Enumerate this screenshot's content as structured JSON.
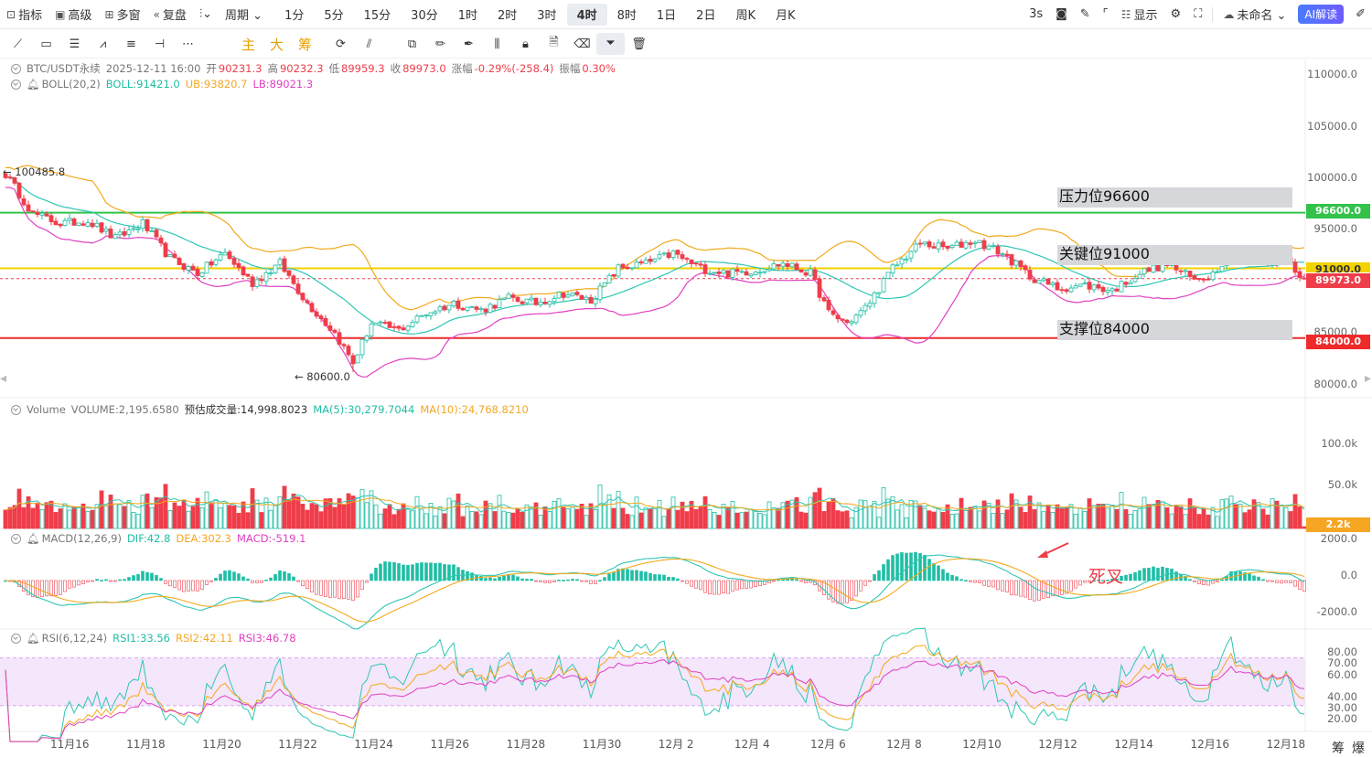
{
  "topbar": {
    "left_items": [
      {
        "icon": "indicator-icon",
        "glyph": "⊡",
        "label": "指标"
      },
      {
        "icon": "advanced-icon",
        "glyph": "▣",
        "label": "高级"
      },
      {
        "icon": "multi-window-icon",
        "glyph": "⊞",
        "label": "多窗"
      },
      {
        "icon": "replay-icon",
        "glyph": "«",
        "label": "复盘"
      }
    ],
    "chart_type_glyph": "⫶⌄",
    "period_label": "周期 ⌄",
    "timeframes": [
      "1分",
      "5分",
      "15分",
      "30分",
      "1时",
      "2时",
      "3时",
      "4时",
      "8时",
      "1日",
      "2日",
      "周K",
      "月K"
    ],
    "active_timeframe": "4时",
    "refresh_label": "3s",
    "display_label": "显示",
    "layout_name": "未命名 ⌄",
    "ai_button": "AI解读"
  },
  "toolbar2": {
    "text_buttons": [
      "主",
      "大",
      "筹"
    ]
  },
  "legend": {
    "symbol": "BTC/USDT永续",
    "datetime": "2025-12-11 16:00",
    "open_label": "开",
    "open": "90231.3",
    "high_label": "高",
    "high": "90232.3",
    "low_label": "低",
    "low": "89959.3",
    "close_label": "收",
    "close": "89973.0",
    "change_label": "涨幅",
    "change": "-0.29%(-258.4)",
    "amp_label": "振幅",
    "amp": "0.30%",
    "boll_name": "BOLL(20,2)",
    "boll_mid": "BOLL:91421.0",
    "boll_ub": "UB:93820.7",
    "boll_lb": "LB:89021.3"
  },
  "volume_legend": {
    "name": "Volume",
    "volume": "VOLUME:2,195.6580",
    "estimate": "预估成交量:14,998.8023",
    "ma5": "MA(5):30,279.7044",
    "ma10": "MA(10):24,768.8210"
  },
  "macd_legend": {
    "name": "MACD(12,26,9)",
    "dif": "DIF:42.8",
    "dea": "DEA:302.3",
    "macd": "MACD:-519.1"
  },
  "rsi_legend": {
    "name": "RSI(6,12,24)",
    "rsi1": "RSI1:33.56",
    "rsi2": "RSI2:42.11",
    "rsi3": "RSI3:46.78"
  },
  "price_axis": [
    "110000.0",
    "105000.0",
    "100000.0",
    "95000.0",
    "85000.0",
    "80000.0"
  ],
  "volume_axis": [
    "100.0k",
    "50.0k"
  ],
  "macd_axis": [
    "2000.0",
    "0.0",
    "-2000.0"
  ],
  "rsi_axis": [
    "80.00",
    "70.00",
    "60.00",
    "40.00",
    "30.00",
    "20.00"
  ],
  "price_tags": {
    "resistance": "96600.0",
    "key": "91000.0",
    "last": "89973.0",
    "support": "84000.0",
    "volume_last": "2.2k"
  },
  "zones": {
    "resistance": "压力位96600",
    "key": "关键位91000",
    "support": "支撑位84000"
  },
  "annotations": {
    "high_mark": "← 100485.8",
    "low_mark": "← 80600.0",
    "death_cross": "死叉"
  },
  "dates": [
    "11月16",
    "11月18",
    "11月20",
    "11月22",
    "11月24",
    "11月26",
    "11月28",
    "11月30",
    "12月 2",
    "12月 4",
    "12月 6",
    "12月 8",
    "12月10",
    "12月12",
    "12月14",
    "12月16",
    "12月18"
  ],
  "bottom_right": [
    "筹",
    "爆"
  ],
  "colors": {
    "up": "#1ebea5",
    "down": "#ef3d4a",
    "resistance_line": "#33c24a",
    "key_line": "#f2d200",
    "support_line": "#ef2a2a",
    "boll_mid": "#2ec6b4",
    "boll_upper": "#f2a91c",
    "boll_lower": "#e040c0",
    "rsi_band": "#f4e6fb"
  },
  "chart_data": {
    "type": "candlestick",
    "interval": "4h",
    "price_range": [
      78000,
      112000
    ],
    "levels": {
      "resistance": 96600,
      "key": 91000,
      "support": 84000
    },
    "annotated_high": 100485.8,
    "annotated_low": 80600.0,
    "waypoints": [
      {
        "t": 0,
        "p": 100485
      },
      {
        "t": 6,
        "p": 96500
      },
      {
        "t": 12,
        "p": 95500
      },
      {
        "t": 18,
        "p": 95800
      },
      {
        "t": 24,
        "p": 94000
      },
      {
        "t": 30,
        "p": 95500
      },
      {
        "t": 36,
        "p": 92000
      },
      {
        "t": 42,
        "p": 90500
      },
      {
        "t": 48,
        "p": 92500
      },
      {
        "t": 54,
        "p": 89500
      },
      {
        "t": 60,
        "p": 91500
      },
      {
        "t": 66,
        "p": 87500
      },
      {
        "t": 72,
        "p": 84500
      },
      {
        "t": 76,
        "p": 81500
      },
      {
        "t": 80,
        "p": 85500
      },
      {
        "t": 86,
        "p": 84800
      },
      {
        "t": 92,
        "p": 86500
      },
      {
        "t": 98,
        "p": 87500
      },
      {
        "t": 104,
        "p": 86800
      },
      {
        "t": 110,
        "p": 88000
      },
      {
        "t": 116,
        "p": 87500
      },
      {
        "t": 122,
        "p": 88500
      },
      {
        "t": 128,
        "p": 87800
      },
      {
        "t": 134,
        "p": 91000
      },
      {
        "t": 140,
        "p": 91500
      },
      {
        "t": 146,
        "p": 92500
      },
      {
        "t": 152,
        "p": 91000
      },
      {
        "t": 158,
        "p": 90500
      },
      {
        "t": 164,
        "p": 90800
      },
      {
        "t": 170,
        "p": 91500
      },
      {
        "t": 176,
        "p": 90500
      },
      {
        "t": 180,
        "p": 86500
      },
      {
        "t": 184,
        "p": 85500
      },
      {
        "t": 188,
        "p": 87000
      },
      {
        "t": 194,
        "p": 91000
      },
      {
        "t": 200,
        "p": 93500
      },
      {
        "t": 206,
        "p": 93000
      },
      {
        "t": 212,
        "p": 93800
      },
      {
        "t": 218,
        "p": 92500
      },
      {
        "t": 224,
        "p": 90200
      },
      {
        "t": 230,
        "p": 89000
      },
      {
        "t": 236,
        "p": 89300
      },
      {
        "t": 242,
        "p": 88800
      },
      {
        "t": 248,
        "p": 90500
      },
      {
        "t": 254,
        "p": 91500
      },
      {
        "t": 260,
        "p": 89800
      },
      {
        "t": 264,
        "p": 90500
      },
      {
        "t": 268,
        "p": 92800
      },
      {
        "t": 272,
        "p": 92000
      },
      {
        "t": 276,
        "p": 91500
      },
      {
        "t": 280,
        "p": 92000
      },
      {
        "t": 284,
        "p": 89973
      }
    ],
    "candle_count": 285,
    "x_dates": [
      "11月16",
      "11月18",
      "11月20",
      "11月22",
      "11月24",
      "11月26",
      "11月28",
      "11月30",
      "12月 2",
      "12月 4",
      "12月 6",
      "12月 8",
      "12月10",
      "12月12",
      "12月14",
      "12月16",
      "12月18"
    ],
    "volume_range": [
      0,
      130000
    ],
    "macd_range": [
      -2000,
      2000
    ],
    "rsi_range": [
      10,
      85
    ],
    "rsi_band": [
      30,
      70
    ],
    "volume_last": 2195.658,
    "macd_last": {
      "dif": 42.8,
      "dea": 302.3,
      "macd": -519.1
    },
    "rsi_last": {
      "rsi1": 33.56,
      "rsi2": 42.11,
      "rsi3": 46.78
    }
  }
}
